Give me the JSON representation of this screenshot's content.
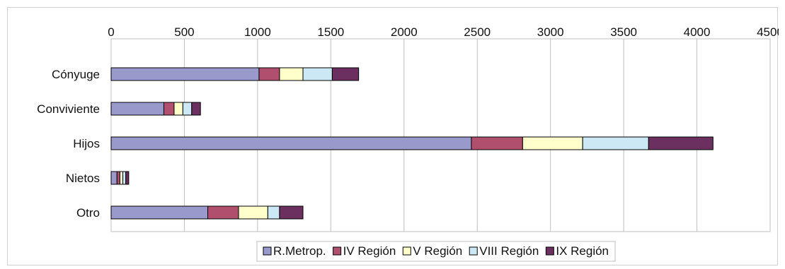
{
  "chart_data": {
    "type": "bar",
    "orientation": "horizontal",
    "stacked": true,
    "title": "",
    "xlabel": "",
    "ylabel": "",
    "xlim": [
      0,
      4500
    ],
    "xticks": [
      0,
      500,
      1000,
      1500,
      2000,
      2500,
      3000,
      3500,
      4000,
      4500
    ],
    "xtick_labels": [
      "0",
      "500",
      "1000",
      "1500",
      "2000",
      "2500",
      "3000",
      "3500",
      "4000",
      "4500"
    ],
    "xaxis_position": "top",
    "grid": true,
    "legend_position": "bottom",
    "categories": [
      "Cónyuge",
      "Conviviente",
      "Hijos",
      "Nietos",
      "Otro"
    ],
    "series": [
      {
        "name": "R.Metrop.",
        "color": "#9999cc",
        "values": [
          1010,
          360,
          2460,
          40,
          660
        ]
      },
      {
        "name": "IV Región",
        "color": "#b0506e",
        "values": [
          140,
          70,
          350,
          20,
          210
        ]
      },
      {
        "name": "V Región",
        "color": "#ffffcc",
        "values": [
          160,
          60,
          410,
          20,
          200
        ]
      },
      {
        "name": "VIII Región",
        "color": "#cce8f4",
        "values": [
          200,
          60,
          450,
          20,
          80
        ]
      },
      {
        "name": "IX Región",
        "color": "#6b3060",
        "values": [
          180,
          60,
          440,
          20,
          160
        ]
      }
    ]
  }
}
